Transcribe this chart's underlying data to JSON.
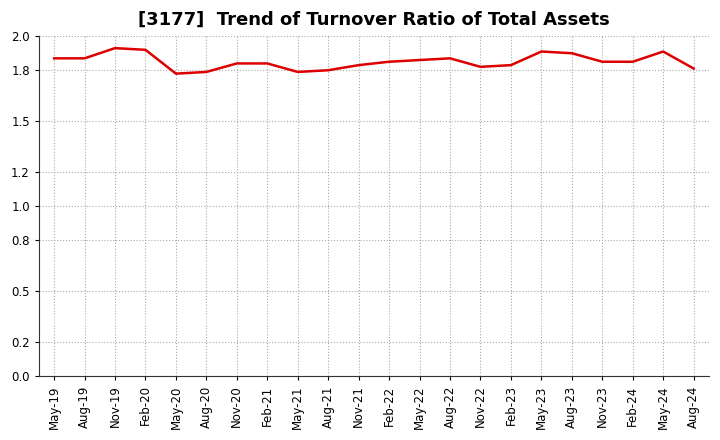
{
  "title": "[3177]  Trend of Turnover Ratio of Total Assets",
  "line_color": "#dd0000",
  "line_width": 1.8,
  "background_color": "#ffffff",
  "grid_color": "#aaaaaa",
  "ylim": [
    0.0,
    2.0
  ],
  "yticks": [
    0.0,
    0.2,
    0.5,
    0.8,
    1.0,
    1.2,
    1.5,
    1.8,
    2.0
  ],
  "x_labels": [
    "May-19",
    "Aug-19",
    "Nov-19",
    "Feb-20",
    "May-20",
    "Aug-20",
    "Nov-20",
    "Feb-21",
    "May-21",
    "Aug-21",
    "Nov-21",
    "Feb-22",
    "May-22",
    "Aug-22",
    "Nov-22",
    "Feb-23",
    "May-23",
    "Aug-23",
    "Nov-23",
    "Feb-24",
    "May-24",
    "Aug-24"
  ],
  "values": [
    1.87,
    1.87,
    1.93,
    1.92,
    1.78,
    1.79,
    1.84,
    1.84,
    1.79,
    1.8,
    1.83,
    1.85,
    1.86,
    1.87,
    1.82,
    1.83,
    1.91,
    1.9,
    1.85,
    1.85,
    1.91,
    1.81
  ],
  "title_fontsize": 13,
  "tick_fontsize": 8.5
}
